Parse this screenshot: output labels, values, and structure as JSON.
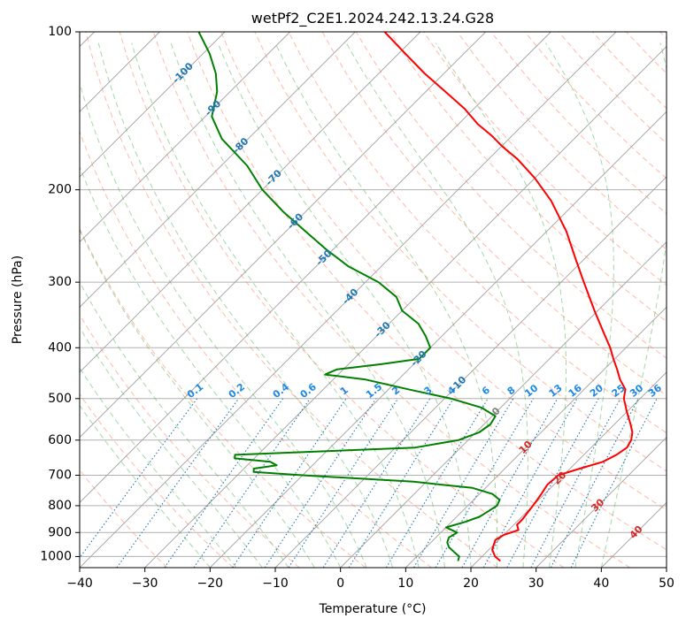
{
  "chart_data": {
    "type": "skew-t log-p",
    "title": "wetPf2_C2E1.2024.242.13.24.G28",
    "xlabel": "Temperature (°C)",
    "ylabel": "Pressure (hPa)",
    "xlim": [
      -40,
      50
    ],
    "ylim": [
      1050,
      100
    ],
    "y_scale": "log",
    "grid": true,
    "x_ticks": [
      -40,
      -30,
      -20,
      -10,
      0,
      10,
      20,
      30,
      40,
      50
    ],
    "y_ticks": [
      100,
      200,
      300,
      400,
      500,
      600,
      700,
      800,
      900,
      1000
    ],
    "colors": {
      "temperature": "#ff0000",
      "dewpoint": "#008000",
      "isotherm": "#a0a0a0",
      "dry_adiabat": "#ff8060",
      "moist_adiabat": "#50b050",
      "mixing_ratio": "#1f77b4",
      "isotherm_label_negative": "#1f77b4",
      "isotherm_label_positive": "#d62728",
      "isotherm_label_zero": "#7f7f7f"
    },
    "series": [
      {
        "key": "temperature",
        "pressure": [
          1020,
          1000,
          970,
          950,
          930,
          910,
          890,
          870,
          850,
          800,
          760,
          730,
          700,
          680,
          660,
          640,
          620,
          600,
          580,
          560,
          530,
          500,
          480,
          460,
          440,
          420,
          400,
          370,
          340,
          300,
          270,
          240,
          210,
          190,
          175,
          165,
          158,
          150,
          140,
          130,
          120,
          110,
          100
        ],
        "temperature": [
          23.5,
          22.0,
          20.5,
          20.0,
          19.5,
          20.0,
          21.5,
          20.5,
          20.5,
          20.0,
          19.5,
          19.0,
          19.2,
          21.5,
          24.0,
          25.0,
          25.5,
          25.0,
          24.0,
          22.5,
          20.0,
          17.5,
          16.3,
          14.0,
          12.0,
          9.8,
          7.6,
          3.7,
          -0.5,
          -6.5,
          -11.5,
          -17.0,
          -24.0,
          -30.0,
          -35.5,
          -40.0,
          -43.0,
          -47.0,
          -51.5,
          -57.0,
          -63.0,
          -69.0,
          -75.5
        ]
      },
      {
        "key": "dewpoint",
        "pressure": [
          1020,
          1000,
          980,
          960,
          940,
          920,
          900,
          880,
          860,
          840,
          820,
          800,
          780,
          760,
          740,
          720,
          700,
          690,
          680,
          670,
          660,
          650,
          640,
          630,
          620,
          600,
          580,
          560,
          540,
          520,
          500,
          480,
          460,
          450,
          440,
          430,
          420,
          400,
          380,
          360,
          340,
          320,
          300,
          280,
          260,
          240,
          220,
          200,
          180,
          160,
          145,
          130,
          120,
          110,
          100
        ],
        "dewpoint": [
          17.0,
          16.5,
          15.0,
          13.5,
          12.5,
          12.0,
          12.5,
          10.0,
          12.0,
          13.5,
          14.0,
          14.5,
          14.0,
          12.0,
          8.0,
          -2.0,
          -20.0,
          -28.0,
          -28.5,
          -25.5,
          -27.0,
          -33.0,
          -33.5,
          -20.0,
          -7.0,
          -1.5,
          0.5,
          1.0,
          0.5,
          -3.0,
          -9.0,
          -17.0,
          -25.0,
          -32.0,
          -31.0,
          -25.0,
          -20.0,
          -20.0,
          -22.5,
          -25.5,
          -30.0,
          -33.0,
          -38.0,
          -45.0,
          -51.0,
          -57.0,
          -63.5,
          -70.0,
          -76.0,
          -84.0,
          -89.0,
          -92.0,
          -95.0,
          -99.0,
          -104.0
        ]
      }
    ],
    "isotherm_labels": [
      -100,
      -90,
      -80,
      -70,
      -60,
      -50,
      -40,
      -30,
      -20,
      -10,
      0,
      10,
      20,
      30,
      40
    ],
    "isotherm_label_pressure": [
      120,
      140,
      165,
      190,
      230,
      270,
      320,
      370,
      420,
      470,
      530,
      620,
      710,
      800,
      900
    ],
    "isotherm_label_text": [
      "-100",
      "-90",
      "-80",
      "-70",
      "-60",
      "-50",
      "-40",
      "-30",
      "-20",
      "-10",
      "0",
      "10",
      "20",
      "30",
      "40"
    ],
    "mixing_ratio_labels": [
      "0.1",
      "0.2",
      "0.4",
      "0.6",
      "1",
      "1.5",
      "2",
      "3",
      "4",
      "6",
      "8",
      "10",
      "13",
      "16",
      "20",
      "25",
      "30",
      "36"
    ],
    "mixing_ratio_values": [
      0.1,
      0.2,
      0.4,
      0.6,
      1,
      1.5,
      2,
      3,
      4,
      6,
      8,
      10,
      13,
      16,
      20,
      25,
      30,
      36
    ],
    "mixing_ratio_label_pressure": 500,
    "mixing_ratio_pressure_range": [
      500,
      1050
    ]
  }
}
